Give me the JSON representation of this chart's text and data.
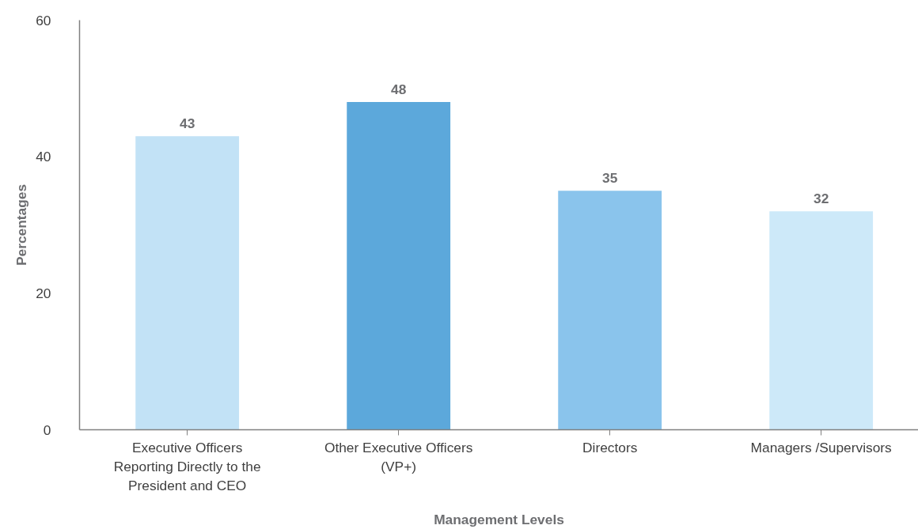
{
  "chart_data": {
    "type": "bar",
    "categories": [
      "Executive Officers Reporting Directly to the President and CEO",
      "Other Executive Officers (VP+)",
      "Directors",
      "Managers /Supervisors"
    ],
    "values": [
      43,
      48,
      35,
      32
    ],
    "colors": [
      "#c2e2f6",
      "#5ca8db",
      "#8ac4ec",
      "#cde9f9"
    ],
    "xlabel": "Management Levels",
    "ylabel": "Percentages",
    "ylim": [
      0,
      60
    ],
    "yticks": [
      0,
      20,
      40,
      60
    ],
    "data_labels": true,
    "grid": false
  }
}
